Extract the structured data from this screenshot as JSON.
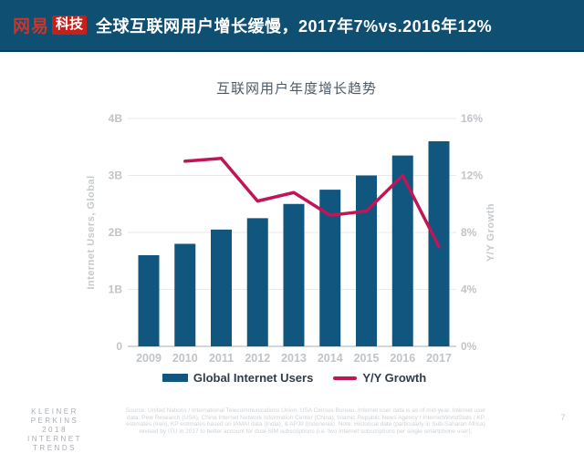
{
  "header": {
    "logo_netease": "网易",
    "logo_tech": "科技",
    "title": "全球互联网用户增长缓慢，2017年7%vs.2016年12%"
  },
  "chart_data": {
    "type": "bar",
    "title": "互联网用户年度增长趋势",
    "categories": [
      "2009",
      "2010",
      "2011",
      "2012",
      "2013",
      "2014",
      "2015",
      "2016",
      "2017"
    ],
    "series": [
      {
        "name": "Global Internet Users",
        "type": "bar",
        "axis": "left",
        "unit": "B",
        "color": "#11567e",
        "values": [
          1.6,
          1.8,
          2.05,
          2.25,
          2.5,
          2.75,
          3.0,
          3.35,
          3.6
        ]
      },
      {
        "name": "Y/Y Growth",
        "type": "line",
        "axis": "right",
        "unit": "%",
        "color": "#c01556",
        "values": [
          null,
          13,
          13.2,
          10.2,
          10.8,
          9.2,
          9.5,
          12,
          7
        ]
      }
    ],
    "left_axis": {
      "label": "Internet Users, Global",
      "ticks": [
        "0",
        "1B",
        "2B",
        "3B",
        "4B"
      ],
      "min": 0,
      "max": 4
    },
    "right_axis": {
      "label": "Y/Y Growth",
      "ticks": [
        "0%",
        "4%",
        "8%",
        "12%",
        "16%"
      ],
      "min": 0,
      "max": 16
    },
    "grid": true,
    "legend_position": "bottom"
  },
  "footer": {
    "brand_line1": "KLEINER PERKINS",
    "brand_line2": "2018",
    "brand_line3": "INTERNET TRENDS",
    "source_lines": [
      "Source: United Nations / International Telecommunications Union, USA Census Bureau. Internet user data is as of mid-year. Internet user",
      "data: Pew Research (USA), China Internet Network Information Center (China), Islamic Republic News Agency / InternetWorldStats / KP",
      "estimates (Iran), KP estimates based on IAMAI data (India), & APJII (Indonesia). Note: Historical data (particularly in Sub-Saharan Africa)",
      "revised by ITU in 2017 to better account for dual-SIM subscriptions (i.e. two Internet subscriptions per single smartphone user)."
    ],
    "page_number": "7"
  },
  "colors": {
    "header_bg": "#0e4f72",
    "logo_red": "#c7201a",
    "bar": "#11567e",
    "line": "#c01556",
    "tick_text": "#c0c4c8",
    "axis_title": "#c6cacd",
    "grid_line": "#e9eaeb",
    "baseline": "#c6cacd",
    "chart_title": "#4d5a66",
    "legend_text": "#2f3d49"
  }
}
